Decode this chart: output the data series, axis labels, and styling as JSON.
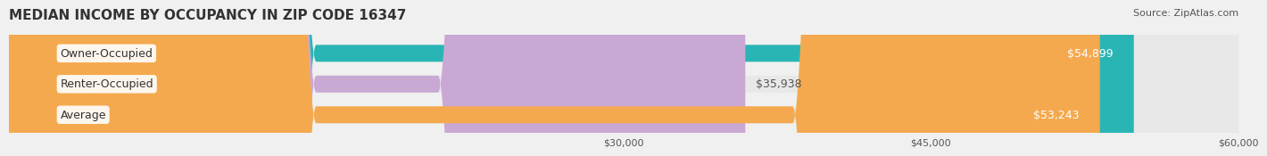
{
  "title": "MEDIAN INCOME BY OCCUPANCY IN ZIP CODE 16347",
  "source": "Source: ZipAtlas.com",
  "categories": [
    "Owner-Occupied",
    "Renter-Occupied",
    "Average"
  ],
  "values": [
    54899,
    35938,
    53243
  ],
  "bar_colors": [
    "#2ab5b5",
    "#c9a8d4",
    "#f5a94e"
  ],
  "label_colors": [
    "#ffffff",
    "#555555",
    "#ffffff"
  ],
  "value_labels": [
    "$54,899",
    "$35,938",
    "$53,243"
  ],
  "xmin": 0,
  "xmax": 60000,
  "xticks": [
    30000,
    45000,
    60000
  ],
  "xtick_labels": [
    "$30,000",
    "$45,000",
    "$60,000"
  ],
  "background_color": "#f0f0f0",
  "bar_bg_color": "#e8e8e8",
  "title_fontsize": 11,
  "source_fontsize": 8,
  "label_fontsize": 9,
  "value_fontsize": 9
}
